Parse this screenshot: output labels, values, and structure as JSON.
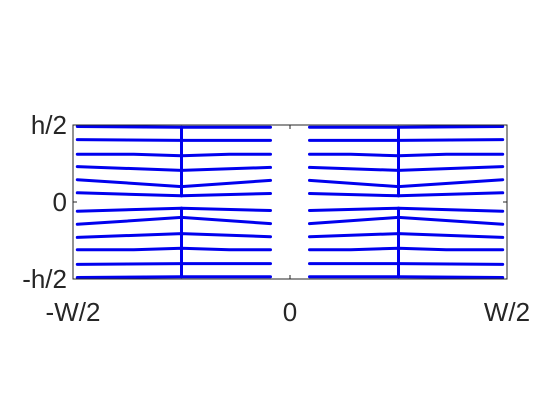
{
  "chart_data": {
    "type": "line",
    "title": "",
    "xlabel": "",
    "ylabel": "",
    "xlim": [
      -1,
      1
    ],
    "ylim": [
      -1,
      1
    ],
    "x_ticks": [
      {
        "value": -1,
        "label": "-W/2"
      },
      {
        "value": 0,
        "label": "0"
      },
      {
        "value": 1,
        "label": "W/2"
      }
    ],
    "y_ticks": [
      {
        "value": 1,
        "label": "h/2"
      },
      {
        "value": 0,
        "label": "0"
      },
      {
        "value": -1,
        "label": "-h/2"
      }
    ],
    "grid": false,
    "line_color": "#0000ee",
    "gap_x": [
      -0.09,
      0.09
    ],
    "stem_x": [
      -0.5,
      0.5
    ],
    "stem_y_ranges": [
      [
        0.08,
        0.97
      ],
      [
        -0.97,
        -0.08
      ]
    ],
    "row_y": [
      0.97,
      0.8,
      0.62,
      0.45,
      0.28,
      0.11,
      -0.11,
      -0.28,
      -0.45,
      -0.62,
      -0.8,
      -0.97
    ],
    "rows": [
      {
        "y": 0.97,
        "left": [
          [
            -0.98,
            0.98
          ],
          [
            -0.5,
            0.97
          ],
          [
            0.0,
            0.97
          ]
        ],
        "right": [
          [
            0.0,
            0.97
          ],
          [
            0.5,
            0.97
          ],
          [
            0.98,
            0.98
          ]
        ]
      },
      {
        "y": 0.8,
        "left": [
          [
            -0.98,
            0.81
          ],
          [
            -0.5,
            0.8
          ],
          [
            0.0,
            0.8
          ]
        ],
        "right": [
          [
            0.0,
            0.8
          ],
          [
            0.5,
            0.8
          ],
          [
            0.98,
            0.81
          ]
        ]
      },
      {
        "y": 0.62,
        "left": [
          [
            -0.98,
            0.62
          ],
          [
            -0.72,
            0.62
          ],
          [
            -0.5,
            0.6
          ],
          [
            -0.28,
            0.62
          ],
          [
            0.0,
            0.62
          ]
        ],
        "right": [
          [
            0.0,
            0.62
          ],
          [
            0.28,
            0.62
          ],
          [
            0.5,
            0.6
          ],
          [
            0.72,
            0.62
          ],
          [
            0.98,
            0.62
          ]
        ]
      },
      {
        "y": 0.45,
        "left": [
          [
            -0.98,
            0.46
          ],
          [
            -0.5,
            0.41
          ],
          [
            0.0,
            0.45
          ]
        ],
        "right": [
          [
            0.0,
            0.45
          ],
          [
            0.5,
            0.41
          ],
          [
            0.98,
            0.46
          ]
        ]
      },
      {
        "y": 0.28,
        "left": [
          [
            -0.98,
            0.29
          ],
          [
            -0.5,
            0.2
          ],
          [
            0.0,
            0.28
          ]
        ],
        "right": [
          [
            0.0,
            0.28
          ],
          [
            0.5,
            0.2
          ],
          [
            0.98,
            0.29
          ]
        ]
      },
      {
        "y": 0.11,
        "left": [
          [
            -0.98,
            0.12
          ],
          [
            -0.5,
            0.08
          ],
          [
            0.0,
            0.11
          ]
        ],
        "right": [
          [
            0.0,
            0.11
          ],
          [
            0.5,
            0.08
          ],
          [
            0.98,
            0.12
          ]
        ]
      },
      {
        "y": -0.11,
        "left": [
          [
            -0.98,
            -0.12
          ],
          [
            -0.5,
            -0.08
          ],
          [
            0.0,
            -0.11
          ]
        ],
        "right": [
          [
            0.0,
            -0.11
          ],
          [
            0.5,
            -0.08
          ],
          [
            0.98,
            -0.12
          ]
        ]
      },
      {
        "y": -0.28,
        "left": [
          [
            -0.98,
            -0.29
          ],
          [
            -0.5,
            -0.2
          ],
          [
            0.0,
            -0.28
          ]
        ],
        "right": [
          [
            0.0,
            -0.28
          ],
          [
            0.5,
            -0.2
          ],
          [
            0.98,
            -0.29
          ]
        ]
      },
      {
        "y": -0.45,
        "left": [
          [
            -0.98,
            -0.46
          ],
          [
            -0.5,
            -0.41
          ],
          [
            0.0,
            -0.45
          ]
        ],
        "right": [
          [
            0.0,
            -0.45
          ],
          [
            0.5,
            -0.41
          ],
          [
            0.98,
            -0.46
          ]
        ]
      },
      {
        "y": -0.62,
        "left": [
          [
            -0.98,
            -0.62
          ],
          [
            -0.72,
            -0.62
          ],
          [
            -0.5,
            -0.6
          ],
          [
            -0.28,
            -0.62
          ],
          [
            0.0,
            -0.62
          ]
        ],
        "right": [
          [
            0.0,
            -0.62
          ],
          [
            0.28,
            -0.62
          ],
          [
            0.5,
            -0.6
          ],
          [
            0.72,
            -0.62
          ],
          [
            0.98,
            -0.62
          ]
        ]
      },
      {
        "y": -0.8,
        "left": [
          [
            -0.98,
            -0.81
          ],
          [
            -0.5,
            -0.8
          ],
          [
            0.0,
            -0.8
          ]
        ],
        "right": [
          [
            0.0,
            -0.8
          ],
          [
            0.5,
            -0.8
          ],
          [
            0.98,
            -0.81
          ]
        ]
      },
      {
        "y": -0.97,
        "left": [
          [
            -0.98,
            -0.98
          ],
          [
            -0.5,
            -0.97
          ],
          [
            0.0,
            -0.97
          ]
        ],
        "right": [
          [
            0.0,
            -0.97
          ],
          [
            0.5,
            -0.97
          ],
          [
            0.98,
            -0.98
          ]
        ]
      }
    ]
  }
}
